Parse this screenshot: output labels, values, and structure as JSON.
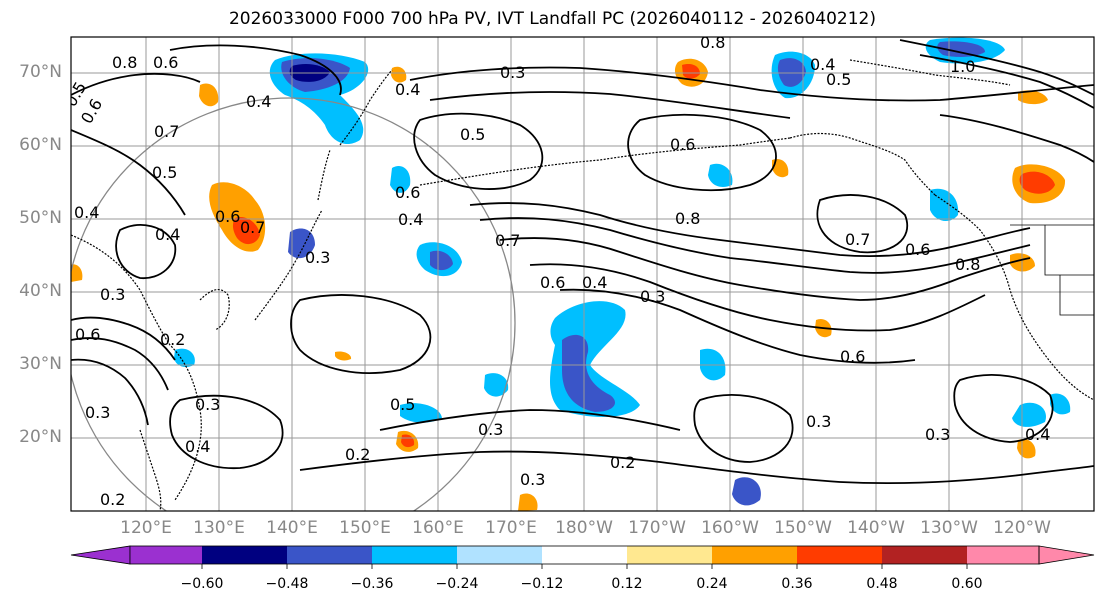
{
  "title": "2026033000 F000 700 hPa PV, IVT Landfall PC (2026040112 - 2026040212)",
  "lat_labels": [
    "70°N",
    "60°N",
    "50°N",
    "40°N",
    "30°N",
    "20°N"
  ],
  "lon_labels": [
    "120°E",
    "130°E",
    "140°E",
    "150°E",
    "160°E",
    "170°E",
    "180°W",
    "170°W",
    "160°W",
    "150°W",
    "140°W",
    "130°W",
    "120°W"
  ],
  "colorbar": {
    "ticks": [
      "−0.60",
      "−0.48",
      "−0.36",
      "−0.24",
      "−0.12",
      "0.12",
      "0.24",
      "0.36",
      "0.48",
      "0.60"
    ],
    "colors": [
      "#9b30d0",
      "#000080",
      "#3a55c8",
      "#00bfff",
      "#b0e2ff",
      "#ffffff",
      "#ffe890",
      "#ffa000",
      "#ff3c00",
      "#b22222",
      "#ff88aa",
      "#ff88aa"
    ]
  },
  "contour_labels": [
    "0.8",
    "0.6",
    "0.5",
    "0.6",
    "0.4",
    "0.4",
    "0.7",
    "0.5",
    "0.4",
    "0.6",
    "0.7",
    "0.3",
    "0.4",
    "0.6",
    "0.4",
    "0.7",
    "0.6",
    "0.4",
    "0.3",
    "0.8",
    "0.5",
    "1.0",
    "0.8",
    "0.4",
    "0.3",
    "0.5",
    "0.6",
    "0.8",
    "0.6",
    "0.7",
    "0.3",
    "0.5",
    "0.2",
    "0.3",
    "0.3",
    "0.2",
    "0.3",
    "0.4",
    "0.3",
    "0.2",
    "0.3",
    "0.2",
    "0.6",
    "0.6",
    "0.3",
    "0.4"
  ]
}
